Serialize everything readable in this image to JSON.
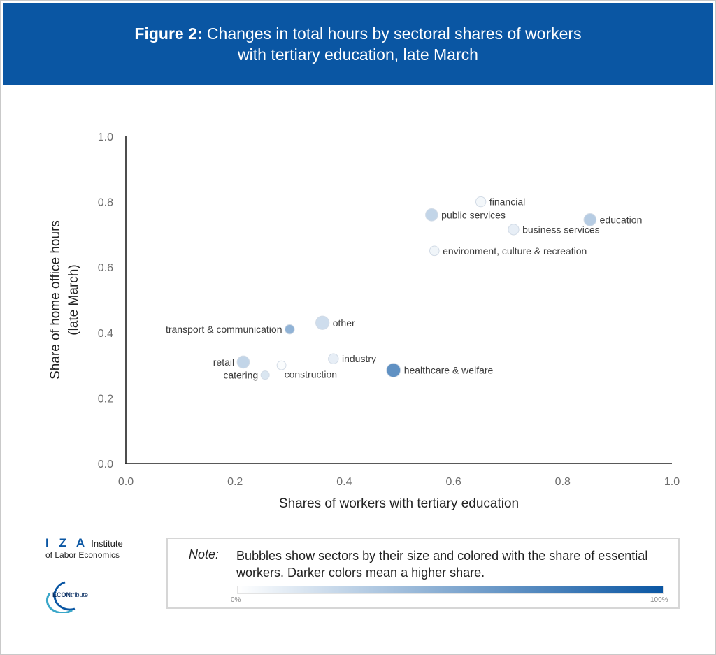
{
  "header": {
    "title_bold": "Figure 2:",
    "title_rest": " Changes in total hours by sectoral shares of workers",
    "title_line2": "with tertiary education, late March",
    "bg_color": "#0a56a3"
  },
  "chart_data": {
    "type": "scatter",
    "xlabel": "Shares of workers with tertiary education",
    "ylabel_line1": "Share of home office hours",
    "ylabel_line2": "(late March)",
    "xlim": [
      0,
      1
    ],
    "ylim": [
      0,
      1
    ],
    "x_ticks": [
      "0.0",
      "0.2",
      "0.4",
      "0.6",
      "0.8",
      "1.0"
    ],
    "y_ticks": [
      "0.0",
      "0.2",
      "0.4",
      "0.6",
      "0.8",
      "1.0"
    ],
    "grid": false,
    "color_scale": {
      "low": "#ffffff",
      "high": "#0a56a3",
      "min_label": "0%",
      "max_label": "100%"
    },
    "points": [
      {
        "label": "financial",
        "x": 0.65,
        "y": 0.8,
        "size": 0.4,
        "essential_share": 0.05,
        "label_pos": "right"
      },
      {
        "label": "public services",
        "x": 0.56,
        "y": 0.76,
        "size": 0.6,
        "essential_share": 0.25,
        "label_pos": "right"
      },
      {
        "label": "education",
        "x": 0.85,
        "y": 0.745,
        "size": 0.6,
        "essential_share": 0.3,
        "label_pos": "right"
      },
      {
        "label": "business services",
        "x": 0.71,
        "y": 0.715,
        "size": 0.45,
        "essential_share": 0.1,
        "label_pos": "right"
      },
      {
        "label": "environment, culture & recreation",
        "x": 0.565,
        "y": 0.65,
        "size": 0.35,
        "essential_share": 0.06,
        "label_pos": "right"
      },
      {
        "label": "other",
        "x": 0.36,
        "y": 0.43,
        "size": 0.7,
        "essential_share": 0.2,
        "label_pos": "right"
      },
      {
        "label": "transport & communication",
        "x": 0.3,
        "y": 0.41,
        "size": 0.35,
        "essential_share": 0.45,
        "label_pos": "left"
      },
      {
        "label": "industry",
        "x": 0.38,
        "y": 0.32,
        "size": 0.4,
        "essential_share": 0.1,
        "label_pos": "right"
      },
      {
        "label": "retail",
        "x": 0.215,
        "y": 0.31,
        "size": 0.6,
        "essential_share": 0.25,
        "label_pos": "left"
      },
      {
        "label": "construction",
        "x": 0.285,
        "y": 0.3,
        "size": 0.3,
        "essential_share": 0.02,
        "label_pos": "right-below"
      },
      {
        "label": "catering",
        "x": 0.255,
        "y": 0.27,
        "size": 0.25,
        "essential_share": 0.15,
        "label_pos": "left"
      },
      {
        "label": "healthcare & welfare",
        "x": 0.49,
        "y": 0.285,
        "size": 0.75,
        "essential_share": 0.65,
        "label_pos": "right"
      }
    ]
  },
  "logos": {
    "iza_letters": "I Z A",
    "iza_institute": "Institute",
    "iza_sub": "of Labor Economics",
    "econ_bold": "ECON",
    "econ_rest": "tribute"
  },
  "note": {
    "label": "Note:",
    "text": "Bubbles show sectors by their size and colored with the share of essential workers. Darker colors mean a higher share."
  }
}
